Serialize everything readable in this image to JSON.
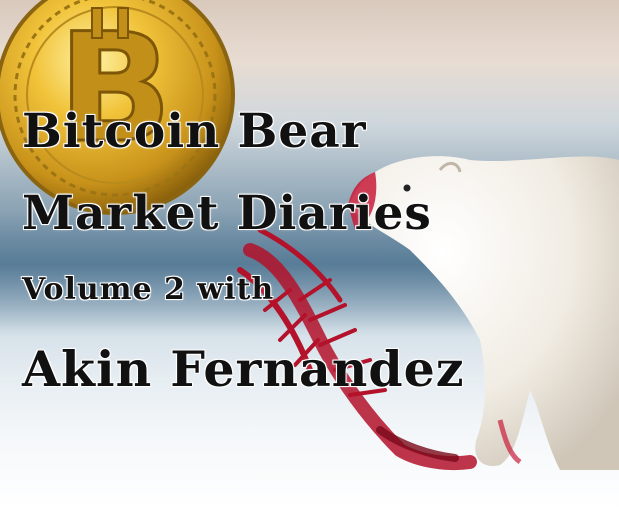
{
  "cover": {
    "title_line_1": "Bitcoin Bear",
    "title_line_2": "Market Diaries",
    "subtitle": "Volume 2 with",
    "author": "Akin Fernandez"
  },
  "colors": {
    "coin_gold": "#d4a21c",
    "coin_dark": "#8a6410",
    "text": "#111111",
    "blood": "#b3122a"
  },
  "icons": {
    "coin": "bitcoin-coin-icon",
    "bear": "polar-bear-illustration"
  }
}
